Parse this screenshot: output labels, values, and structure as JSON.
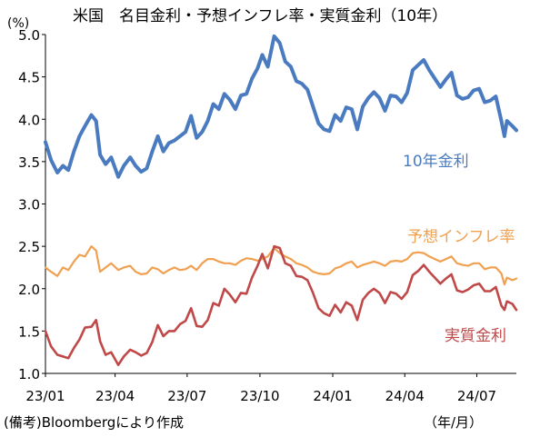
{
  "chart_data": {
    "type": "line",
    "title": "米国　名目金利・予想インフレ率・実質金利（10年）",
    "y_unit": "(%)",
    "x_unit": "（年/月）",
    "note": "(備考)Bloombergにより作成",
    "ylim": [
      1.0,
      5.0
    ],
    "yticks": [
      "1.0",
      "1.5",
      "2.0",
      "2.5",
      "3.0",
      "3.5",
      "4.0",
      "4.5",
      "5.0"
    ],
    "xticks": [
      "23/01",
      "23/04",
      "23/07",
      "23/10",
      "24/01",
      "24/04",
      "24/07"
    ],
    "xlim": [
      "2023-01-03",
      "2024-08-20"
    ],
    "grid": false,
    "series": [
      {
        "name": "10年金利",
        "color": "#4a7bc0",
        "points": [
          [
            "2023-01-03",
            3.73
          ],
          [
            "2023-01-10",
            3.52
          ],
          [
            "2023-01-18",
            3.37
          ],
          [
            "2023-01-25",
            3.45
          ],
          [
            "2023-02-01",
            3.4
          ],
          [
            "2023-02-08",
            3.62
          ],
          [
            "2023-02-15",
            3.8
          ],
          [
            "2023-02-22",
            3.92
          ],
          [
            "2023-03-02",
            4.05
          ],
          [
            "2023-03-08",
            3.98
          ],
          [
            "2023-03-13",
            3.58
          ],
          [
            "2023-03-20",
            3.47
          ],
          [
            "2023-03-27",
            3.55
          ],
          [
            "2023-04-05",
            3.32
          ],
          [
            "2023-04-12",
            3.45
          ],
          [
            "2023-04-20",
            3.55
          ],
          [
            "2023-04-27",
            3.45
          ],
          [
            "2023-05-04",
            3.38
          ],
          [
            "2023-05-11",
            3.42
          ],
          [
            "2023-05-18",
            3.62
          ],
          [
            "2023-05-25",
            3.8
          ],
          [
            "2023-06-01",
            3.62
          ],
          [
            "2023-06-08",
            3.72
          ],
          [
            "2023-06-15",
            3.75
          ],
          [
            "2023-06-22",
            3.8
          ],
          [
            "2023-06-29",
            3.85
          ],
          [
            "2023-07-06",
            4.04
          ],
          [
            "2023-07-13",
            3.78
          ],
          [
            "2023-07-20",
            3.85
          ],
          [
            "2023-07-27",
            3.98
          ],
          [
            "2023-08-03",
            4.18
          ],
          [
            "2023-08-10",
            4.12
          ],
          [
            "2023-08-17",
            4.3
          ],
          [
            "2023-08-24",
            4.23
          ],
          [
            "2023-08-31",
            4.12
          ],
          [
            "2023-09-07",
            4.28
          ],
          [
            "2023-09-14",
            4.3
          ],
          [
            "2023-09-21",
            4.48
          ],
          [
            "2023-09-28",
            4.6
          ],
          [
            "2023-10-04",
            4.76
          ],
          [
            "2023-10-11",
            4.62
          ],
          [
            "2023-10-19",
            4.98
          ],
          [
            "2023-10-26",
            4.9
          ],
          [
            "2023-11-02",
            4.68
          ],
          [
            "2023-11-09",
            4.62
          ],
          [
            "2023-11-16",
            4.45
          ],
          [
            "2023-11-23",
            4.42
          ],
          [
            "2023-11-30",
            4.35
          ],
          [
            "2023-12-07",
            4.15
          ],
          [
            "2023-12-14",
            3.95
          ],
          [
            "2023-12-21",
            3.88
          ],
          [
            "2023-12-28",
            3.86
          ],
          [
            "2024-01-04",
            4.05
          ],
          [
            "2024-01-11",
            3.98
          ],
          [
            "2024-01-18",
            4.14
          ],
          [
            "2024-01-25",
            4.12
          ],
          [
            "2024-02-01",
            3.88
          ],
          [
            "2024-02-08",
            4.15
          ],
          [
            "2024-02-15",
            4.25
          ],
          [
            "2024-02-22",
            4.32
          ],
          [
            "2024-02-29",
            4.25
          ],
          [
            "2024-03-07",
            4.1
          ],
          [
            "2024-03-14",
            4.28
          ],
          [
            "2024-03-21",
            4.27
          ],
          [
            "2024-03-28",
            4.2
          ],
          [
            "2024-04-04",
            4.31
          ],
          [
            "2024-04-11",
            4.58
          ],
          [
            "2024-04-18",
            4.64
          ],
          [
            "2024-04-25",
            4.7
          ],
          [
            "2024-05-02",
            4.58
          ],
          [
            "2024-05-09",
            4.48
          ],
          [
            "2024-05-16",
            4.38
          ],
          [
            "2024-05-23",
            4.47
          ],
          [
            "2024-05-30",
            4.55
          ],
          [
            "2024-06-06",
            4.28
          ],
          [
            "2024-06-13",
            4.24
          ],
          [
            "2024-06-20",
            4.26
          ],
          [
            "2024-06-27",
            4.34
          ],
          [
            "2024-07-04",
            4.36
          ],
          [
            "2024-07-11",
            4.2
          ],
          [
            "2024-07-18",
            4.22
          ],
          [
            "2024-07-25",
            4.27
          ],
          [
            "2024-08-01",
            3.98
          ],
          [
            "2024-08-05",
            3.8
          ],
          [
            "2024-08-08",
            3.98
          ],
          [
            "2024-08-15",
            3.92
          ],
          [
            "2024-08-20",
            3.87
          ]
        ]
      },
      {
        "name": "予想インフレ率",
        "color": "#f0a050",
        "points": [
          [
            "2023-01-03",
            2.25
          ],
          [
            "2023-01-10",
            2.2
          ],
          [
            "2023-01-18",
            2.15
          ],
          [
            "2023-01-25",
            2.25
          ],
          [
            "2023-02-01",
            2.22
          ],
          [
            "2023-02-08",
            2.32
          ],
          [
            "2023-02-15",
            2.4
          ],
          [
            "2023-02-22",
            2.38
          ],
          [
            "2023-03-02",
            2.5
          ],
          [
            "2023-03-08",
            2.45
          ],
          [
            "2023-03-13",
            2.2
          ],
          [
            "2023-03-20",
            2.25
          ],
          [
            "2023-03-27",
            2.3
          ],
          [
            "2023-04-05",
            2.22
          ],
          [
            "2023-04-12",
            2.25
          ],
          [
            "2023-04-20",
            2.27
          ],
          [
            "2023-04-27",
            2.2
          ],
          [
            "2023-05-04",
            2.17
          ],
          [
            "2023-05-11",
            2.18
          ],
          [
            "2023-05-18",
            2.25
          ],
          [
            "2023-05-25",
            2.23
          ],
          [
            "2023-06-01",
            2.18
          ],
          [
            "2023-06-08",
            2.22
          ],
          [
            "2023-06-15",
            2.25
          ],
          [
            "2023-06-22",
            2.22
          ],
          [
            "2023-06-29",
            2.23
          ],
          [
            "2023-07-06",
            2.27
          ],
          [
            "2023-07-13",
            2.22
          ],
          [
            "2023-07-20",
            2.3
          ],
          [
            "2023-07-27",
            2.35
          ],
          [
            "2023-08-03",
            2.35
          ],
          [
            "2023-08-10",
            2.32
          ],
          [
            "2023-08-17",
            2.3
          ],
          [
            "2023-08-24",
            2.3
          ],
          [
            "2023-08-31",
            2.28
          ],
          [
            "2023-09-07",
            2.33
          ],
          [
            "2023-09-14",
            2.36
          ],
          [
            "2023-09-21",
            2.35
          ],
          [
            "2023-09-28",
            2.33
          ],
          [
            "2023-10-04",
            2.35
          ],
          [
            "2023-10-11",
            2.38
          ],
          [
            "2023-10-19",
            2.48
          ],
          [
            "2023-10-26",
            2.42
          ],
          [
            "2023-11-02",
            2.38
          ],
          [
            "2023-11-09",
            2.35
          ],
          [
            "2023-11-16",
            2.3
          ],
          [
            "2023-11-23",
            2.28
          ],
          [
            "2023-11-30",
            2.25
          ],
          [
            "2023-12-07",
            2.2
          ],
          [
            "2023-12-14",
            2.18
          ],
          [
            "2023-12-21",
            2.17
          ],
          [
            "2023-12-28",
            2.18
          ],
          [
            "2024-01-04",
            2.24
          ],
          [
            "2024-01-11",
            2.26
          ],
          [
            "2024-01-18",
            2.3
          ],
          [
            "2024-01-25",
            2.32
          ],
          [
            "2024-02-01",
            2.25
          ],
          [
            "2024-02-08",
            2.28
          ],
          [
            "2024-02-15",
            2.3
          ],
          [
            "2024-02-22",
            2.32
          ],
          [
            "2024-02-29",
            2.3
          ],
          [
            "2024-03-07",
            2.27
          ],
          [
            "2024-03-14",
            2.32
          ],
          [
            "2024-03-21",
            2.33
          ],
          [
            "2024-03-28",
            2.32
          ],
          [
            "2024-04-04",
            2.35
          ],
          [
            "2024-04-11",
            2.42
          ],
          [
            "2024-04-18",
            2.43
          ],
          [
            "2024-04-25",
            2.42
          ],
          [
            "2024-05-02",
            2.38
          ],
          [
            "2024-05-09",
            2.35
          ],
          [
            "2024-05-16",
            2.32
          ],
          [
            "2024-05-23",
            2.35
          ],
          [
            "2024-05-30",
            2.38
          ],
          [
            "2024-06-06",
            2.3
          ],
          [
            "2024-06-13",
            2.28
          ],
          [
            "2024-06-20",
            2.27
          ],
          [
            "2024-06-27",
            2.3
          ],
          [
            "2024-07-04",
            2.3
          ],
          [
            "2024-07-11",
            2.23
          ],
          [
            "2024-07-18",
            2.25
          ],
          [
            "2024-07-25",
            2.25
          ],
          [
            "2024-08-01",
            2.18
          ],
          [
            "2024-08-05",
            2.05
          ],
          [
            "2024-08-08",
            2.13
          ],
          [
            "2024-08-15",
            2.1
          ],
          [
            "2024-08-20",
            2.12
          ]
        ]
      },
      {
        "name": "実質金利",
        "color": "#c04848",
        "points": [
          [
            "2023-01-03",
            1.5
          ],
          [
            "2023-01-10",
            1.32
          ],
          [
            "2023-01-18",
            1.22
          ],
          [
            "2023-01-25",
            1.2
          ],
          [
            "2023-02-01",
            1.18
          ],
          [
            "2023-02-08",
            1.3
          ],
          [
            "2023-02-15",
            1.4
          ],
          [
            "2023-02-22",
            1.54
          ],
          [
            "2023-03-02",
            1.55
          ],
          [
            "2023-03-08",
            1.63
          ],
          [
            "2023-03-13",
            1.38
          ],
          [
            "2023-03-20",
            1.22
          ],
          [
            "2023-03-27",
            1.25
          ],
          [
            "2023-04-05",
            1.1
          ],
          [
            "2023-04-12",
            1.2
          ],
          [
            "2023-04-20",
            1.28
          ],
          [
            "2023-04-27",
            1.25
          ],
          [
            "2023-05-04",
            1.21
          ],
          [
            "2023-05-11",
            1.24
          ],
          [
            "2023-05-18",
            1.37
          ],
          [
            "2023-05-25",
            1.57
          ],
          [
            "2023-06-01",
            1.44
          ],
          [
            "2023-06-08",
            1.5
          ],
          [
            "2023-06-15",
            1.5
          ],
          [
            "2023-06-22",
            1.58
          ],
          [
            "2023-06-29",
            1.62
          ],
          [
            "2023-07-06",
            1.77
          ],
          [
            "2023-07-13",
            1.56
          ],
          [
            "2023-07-20",
            1.55
          ],
          [
            "2023-07-27",
            1.63
          ],
          [
            "2023-08-03",
            1.83
          ],
          [
            "2023-08-10",
            1.8
          ],
          [
            "2023-08-17",
            2.0
          ],
          [
            "2023-08-24",
            1.93
          ],
          [
            "2023-08-31",
            1.84
          ],
          [
            "2023-09-07",
            1.95
          ],
          [
            "2023-09-14",
            1.94
          ],
          [
            "2023-09-21",
            2.13
          ],
          [
            "2023-09-28",
            2.27
          ],
          [
            "2023-10-04",
            2.41
          ],
          [
            "2023-10-11",
            2.24
          ],
          [
            "2023-10-19",
            2.5
          ],
          [
            "2023-10-26",
            2.48
          ],
          [
            "2023-11-02",
            2.3
          ],
          [
            "2023-11-09",
            2.27
          ],
          [
            "2023-11-16",
            2.15
          ],
          [
            "2023-11-23",
            2.14
          ],
          [
            "2023-11-30",
            2.1
          ],
          [
            "2023-12-07",
            1.95
          ],
          [
            "2023-12-14",
            1.77
          ],
          [
            "2023-12-21",
            1.71
          ],
          [
            "2023-12-28",
            1.68
          ],
          [
            "2024-01-04",
            1.81
          ],
          [
            "2024-01-11",
            1.72
          ],
          [
            "2024-01-18",
            1.84
          ],
          [
            "2024-01-25",
            1.8
          ],
          [
            "2024-02-01",
            1.63
          ],
          [
            "2024-02-08",
            1.87
          ],
          [
            "2024-02-15",
            1.95
          ],
          [
            "2024-02-22",
            2.0
          ],
          [
            "2024-02-29",
            1.95
          ],
          [
            "2024-03-07",
            1.83
          ],
          [
            "2024-03-14",
            1.96
          ],
          [
            "2024-03-21",
            1.94
          ],
          [
            "2024-03-28",
            1.88
          ],
          [
            "2024-04-04",
            1.96
          ],
          [
            "2024-04-11",
            2.16
          ],
          [
            "2024-04-18",
            2.21
          ],
          [
            "2024-04-25",
            2.28
          ],
          [
            "2024-05-02",
            2.2
          ],
          [
            "2024-05-09",
            2.13
          ],
          [
            "2024-05-16",
            2.06
          ],
          [
            "2024-05-23",
            2.12
          ],
          [
            "2024-05-30",
            2.17
          ],
          [
            "2024-06-06",
            1.98
          ],
          [
            "2024-06-13",
            1.96
          ],
          [
            "2024-06-20",
            1.99
          ],
          [
            "2024-06-27",
            2.04
          ],
          [
            "2024-07-04",
            2.06
          ],
          [
            "2024-07-11",
            1.97
          ],
          [
            "2024-07-18",
            1.97
          ],
          [
            "2024-07-25",
            2.02
          ],
          [
            "2024-08-01",
            1.8
          ],
          [
            "2024-08-05",
            1.75
          ],
          [
            "2024-08-08",
            1.85
          ],
          [
            "2024-08-15",
            1.82
          ],
          [
            "2024-08-20",
            1.75
          ]
        ]
      }
    ]
  }
}
